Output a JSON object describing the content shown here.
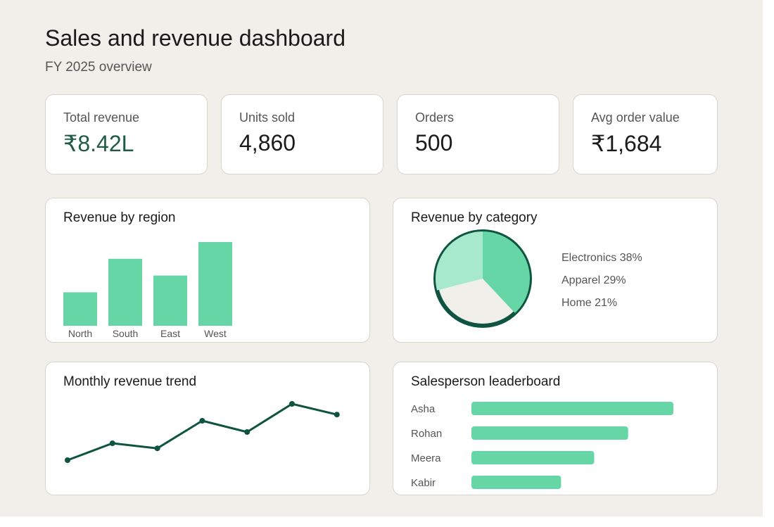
{
  "header": {
    "title": "Sales and revenue dashboard",
    "subtitle": "FY 2025 overview"
  },
  "colors": {
    "accent": "#66d6a6",
    "accent_light": "#a6e9cd",
    "dark_green": "#0f5440",
    "value_green": "#1f5c45",
    "background": "#f1efea",
    "card": "#ffffff"
  },
  "kpis": [
    {
      "label": "Total revenue",
      "value": "₹8.42L"
    },
    {
      "label": "Units sold",
      "value": "4,860"
    },
    {
      "label": "Orders",
      "value": "500"
    },
    {
      "label": "Avg order value",
      "value": "₹1,684"
    }
  ],
  "panels": {
    "region": {
      "title": "Revenue by region"
    },
    "category": {
      "title": "Revenue by category"
    },
    "trend": {
      "title": "Monthly revenue trend"
    },
    "leaderboard": {
      "title": "Salesperson leaderboard"
    }
  },
  "chart_data": [
    {
      "type": "bar",
      "title": "Revenue by region",
      "categories": [
        "North",
        "South",
        "East",
        "West"
      ],
      "values": [
        40,
        80,
        60,
        100
      ],
      "ylim": [
        0,
        100
      ],
      "grid": false
    },
    {
      "type": "pie",
      "title": "Revenue by category",
      "slices": [
        {
          "label": "Electronics 38%",
          "value": 38
        },
        {
          "label": "Apparel 29%",
          "value": 29
        },
        {
          "label": "Home 21%",
          "value": 21
        }
      ],
      "legend": "right"
    },
    {
      "type": "line",
      "title": "Monthly revenue trend",
      "x": [
        1,
        2,
        3,
        4,
        5,
        6,
        7
      ],
      "values": [
        0,
        30,
        21,
        70,
        50,
        100,
        81
      ],
      "ylim": [
        0,
        100
      ],
      "grid": false
    },
    {
      "type": "bar",
      "title": "Salesperson leaderboard",
      "orientation": "horizontal",
      "categories": [
        "Asha",
        "Rohan",
        "Meera",
        "Kabir"
      ],
      "values": [
        100,
        77.6,
        60.8,
        44.4
      ],
      "xlim": [
        0,
        100
      ],
      "grid": false
    }
  ]
}
